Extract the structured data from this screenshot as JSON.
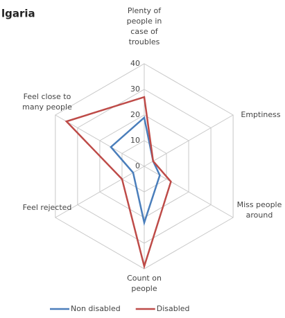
{
  "chart_data": {
    "type": "radar",
    "title": "lgaria",
    "categories": [
      "Plenty of people in case of troubles",
      "Emptiness",
      "Miss people around",
      "Count on people",
      "Feel rejected",
      "Feel close to many people"
    ],
    "series": [
      {
        "name": "Non disabled",
        "color": "#4a7ebb",
        "values": [
          19,
          4,
          7,
          22,
          5,
          15
        ]
      },
      {
        "name": "Disabled",
        "color": "#be4b48",
        "values": [
          27,
          4,
          12,
          39,
          10,
          35
        ]
      }
    ],
    "ylim": [
      0,
      40
    ],
    "yticks": [
      0,
      10,
      20,
      30,
      40
    ],
    "grid": true,
    "legend": "bottom"
  }
}
